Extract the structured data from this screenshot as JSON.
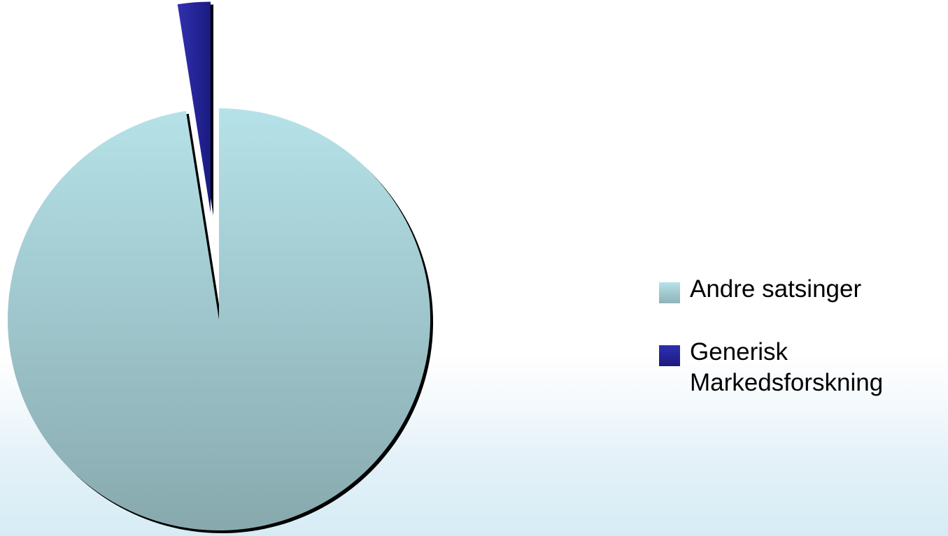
{
  "chart_data": {
    "type": "pie",
    "title": "",
    "exploded": true,
    "shadow": true,
    "legend_position": "right",
    "slices": [
      {
        "label": "Andre satsinger",
        "value": 97.5,
        "color": "#aad6dc"
      },
      {
        "label": "Generisk Markedsforskning",
        "value": 2.5,
        "color": "#2525a0"
      }
    ]
  }
}
